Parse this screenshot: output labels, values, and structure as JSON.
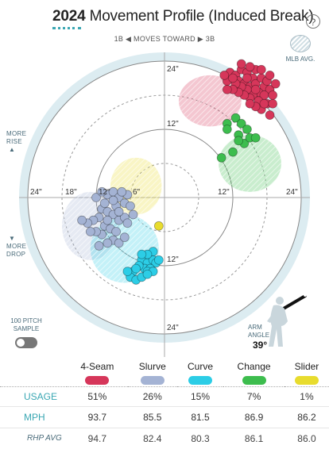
{
  "header": {
    "year": "2024",
    "title": "Movement Profile (Induced Break)",
    "help_label": "?"
  },
  "direction_label": "1B ◀ MOVES TOWARD ▶ 3B",
  "legend_avg_label": "MLB AVG.",
  "side_labels": {
    "more_rise_1": "MORE",
    "more_rise_2": "RISE",
    "more_drop_1": "MORE",
    "more_drop_2": "DROP"
  },
  "toggle": {
    "label_1": "100 PITCH",
    "label_2": "SAMPLE"
  },
  "arm_angle": {
    "label_1": "ARM",
    "label_2": "ANGLE",
    "value": "39°"
  },
  "rings": {
    "top_24": "24\"",
    "top_12": "12\"",
    "bottom_12": "12\"",
    "bottom_24": "24\"",
    "left_24": "24\"",
    "left_18": "18\"",
    "left_12": "12\"",
    "left_6": "6\"",
    "right_12": "12\"",
    "right_24": "24\""
  },
  "pitches": [
    {
      "name": "4-Seam",
      "color": "#d6365a",
      "usage": "51%",
      "mph": "93.7",
      "rhp_avg": "94.7"
    },
    {
      "name": "Slurve",
      "color": "#a4b3d4",
      "usage": "26%",
      "mph": "85.5",
      "rhp_avg": "82.4"
    },
    {
      "name": "Curve",
      "color": "#2ccde6",
      "usage": "15%",
      "mph": "81.5",
      "rhp_avg": "80.3"
    },
    {
      "name": "Change",
      "color": "#3dbd4e",
      "usage": "7%",
      "mph": "86.9",
      "rhp_avg": "86.1"
    },
    {
      "name": "Slider",
      "color": "#e8dc2e",
      "usage": "1%",
      "mph": "86.2",
      "rhp_avg": "86.0"
    }
  ],
  "row_labels": {
    "usage": "USAGE",
    "mph": "MPH",
    "rhp": "RHP AVG"
  },
  "chart_data": {
    "type": "scatter",
    "x_unit": "inches horizontal break (toward 3B positive)",
    "y_unit": "inches induced vertical break",
    "ring_radii": [
      6,
      12,
      18,
      24
    ],
    "series": [
      {
        "name": "4-Seam",
        "color": "#d6365a",
        "points": [
          [
            11.5,
            22
          ],
          [
            12.5,
            21.5
          ],
          [
            13.5,
            22.5
          ],
          [
            14.5,
            22
          ],
          [
            15.5,
            21
          ],
          [
            16,
            22.5
          ],
          [
            13,
            20.5
          ],
          [
            14,
            20
          ],
          [
            15,
            19.5
          ],
          [
            16,
            20
          ],
          [
            17,
            21
          ],
          [
            17.5,
            19.5
          ],
          [
            16.5,
            18.5
          ],
          [
            15.5,
            18
          ],
          [
            14.5,
            19
          ],
          [
            13.5,
            19.5
          ],
          [
            12.5,
            20
          ],
          [
            18,
            20.5
          ],
          [
            18.5,
            19
          ],
          [
            17.5,
            18
          ],
          [
            16.5,
            17
          ],
          [
            15,
            17.5
          ],
          [
            14,
            18
          ],
          [
            13,
            18.5
          ],
          [
            12,
            19
          ],
          [
            11,
            20.5
          ],
          [
            10.5,
            21.5
          ],
          [
            19,
            18
          ],
          [
            18,
            16.5
          ],
          [
            17,
            15.5
          ],
          [
            16,
            16
          ],
          [
            15,
            16.5
          ],
          [
            19.5,
            20
          ],
          [
            17,
            22.5
          ],
          [
            15,
            23
          ],
          [
            13.5,
            23.5
          ],
          [
            18.5,
            21.5
          ],
          [
            16,
            19
          ],
          [
            14.5,
            21
          ],
          [
            12,
            21
          ],
          [
            11,
            19
          ],
          [
            17.5,
            16.5
          ],
          [
            19,
            16.5
          ],
          [
            18.5,
            14.5
          ]
        ]
      },
      {
        "name": "Slurve",
        "color": "#a4b3d4",
        "points": [
          [
            -11,
            -2
          ],
          [
            -10,
            -2.5
          ],
          [
            -9,
            -3
          ],
          [
            -8,
            -4
          ],
          [
            -7,
            -3.5
          ],
          [
            -11.5,
            -3.5
          ],
          [
            -12.5,
            -4
          ],
          [
            -13.5,
            -4.5
          ],
          [
            -14.5,
            -4
          ],
          [
            -10.5,
            -5
          ],
          [
            -9.5,
            -5.5
          ],
          [
            -8.5,
            -6
          ],
          [
            -11,
            -6.5
          ],
          [
            -12,
            -6
          ],
          [
            -13,
            -6
          ],
          [
            -9,
            -7.5
          ],
          [
            -10,
            -8
          ],
          [
            -8,
            -8
          ],
          [
            -7,
            -7
          ],
          [
            -11.5,
            -8.5
          ],
          [
            -10,
            0.5
          ],
          [
            -9,
            1
          ],
          [
            -8,
            0
          ],
          [
            -7,
            -1
          ],
          [
            -6,
            -1.5
          ],
          [
            -8.5,
            -1.5
          ],
          [
            -12,
            0
          ],
          [
            -10.5,
            -1
          ],
          [
            -6.5,
            -4.5
          ],
          [
            -8,
            -2.5
          ],
          [
            -5.5,
            -3
          ],
          [
            -6.5,
            0.5
          ],
          [
            -7.5,
            1
          ],
          [
            -11,
            1
          ],
          [
            -9,
            -0.5
          ],
          [
            -10,
            -4
          ]
        ]
      },
      {
        "name": "Curve",
        "color": "#2ccde6",
        "points": [
          [
            -4,
            -11
          ],
          [
            -3,
            -11.5
          ],
          [
            -2,
            -11
          ],
          [
            -1.5,
            -11.5
          ],
          [
            -3.5,
            -12.5
          ],
          [
            -2.5,
            -12.5
          ],
          [
            -4.5,
            -12
          ],
          [
            -5.5,
            -13
          ],
          [
            -6,
            -14
          ],
          [
            -5,
            -14.5
          ],
          [
            -4,
            -14
          ],
          [
            -3,
            -13
          ],
          [
            -2,
            -13
          ],
          [
            -1,
            -11
          ],
          [
            -2,
            -9.5
          ],
          [
            -3,
            -10
          ],
          [
            -4,
            -10
          ],
          [
            -6.5,
            -13
          ],
          [
            -5,
            -12.5
          ],
          [
            -3,
            -13.5
          ]
        ]
      },
      {
        "name": "Change",
        "color": "#3dbd4e",
        "points": [
          [
            11,
            13
          ],
          [
            12.5,
            14
          ],
          [
            13.5,
            13
          ],
          [
            14.5,
            12
          ],
          [
            13,
            11
          ],
          [
            14,
            9.5
          ],
          [
            12,
            8
          ],
          [
            10,
            7
          ],
          [
            15,
            10.5
          ],
          [
            11,
            12
          ],
          [
            16,
            10.5
          ],
          [
            13,
            10
          ]
        ]
      },
      {
        "name": "Slider",
        "color": "#e8dc2e",
        "points": [
          [
            -1,
            -5
          ]
        ]
      }
    ],
    "mlb_avg_regions": [
      {
        "name": "4-Seam",
        "cx": 8,
        "cy": 17,
        "rx": 5.5,
        "ry": 4.5
      },
      {
        "name": "Change",
        "cx": 15,
        "cy": 6,
        "rx": 5.5,
        "ry": 5
      },
      {
        "name": "Slider",
        "cx": -5,
        "cy": 2,
        "rx": 4.5,
        "ry": 5
      },
      {
        "name": "Slurve",
        "cx": -13,
        "cy": -5,
        "rx": 5,
        "ry": 6
      },
      {
        "name": "Curve",
        "cx": -7,
        "cy": -9,
        "rx": 6,
        "ry": 6
      }
    ]
  }
}
